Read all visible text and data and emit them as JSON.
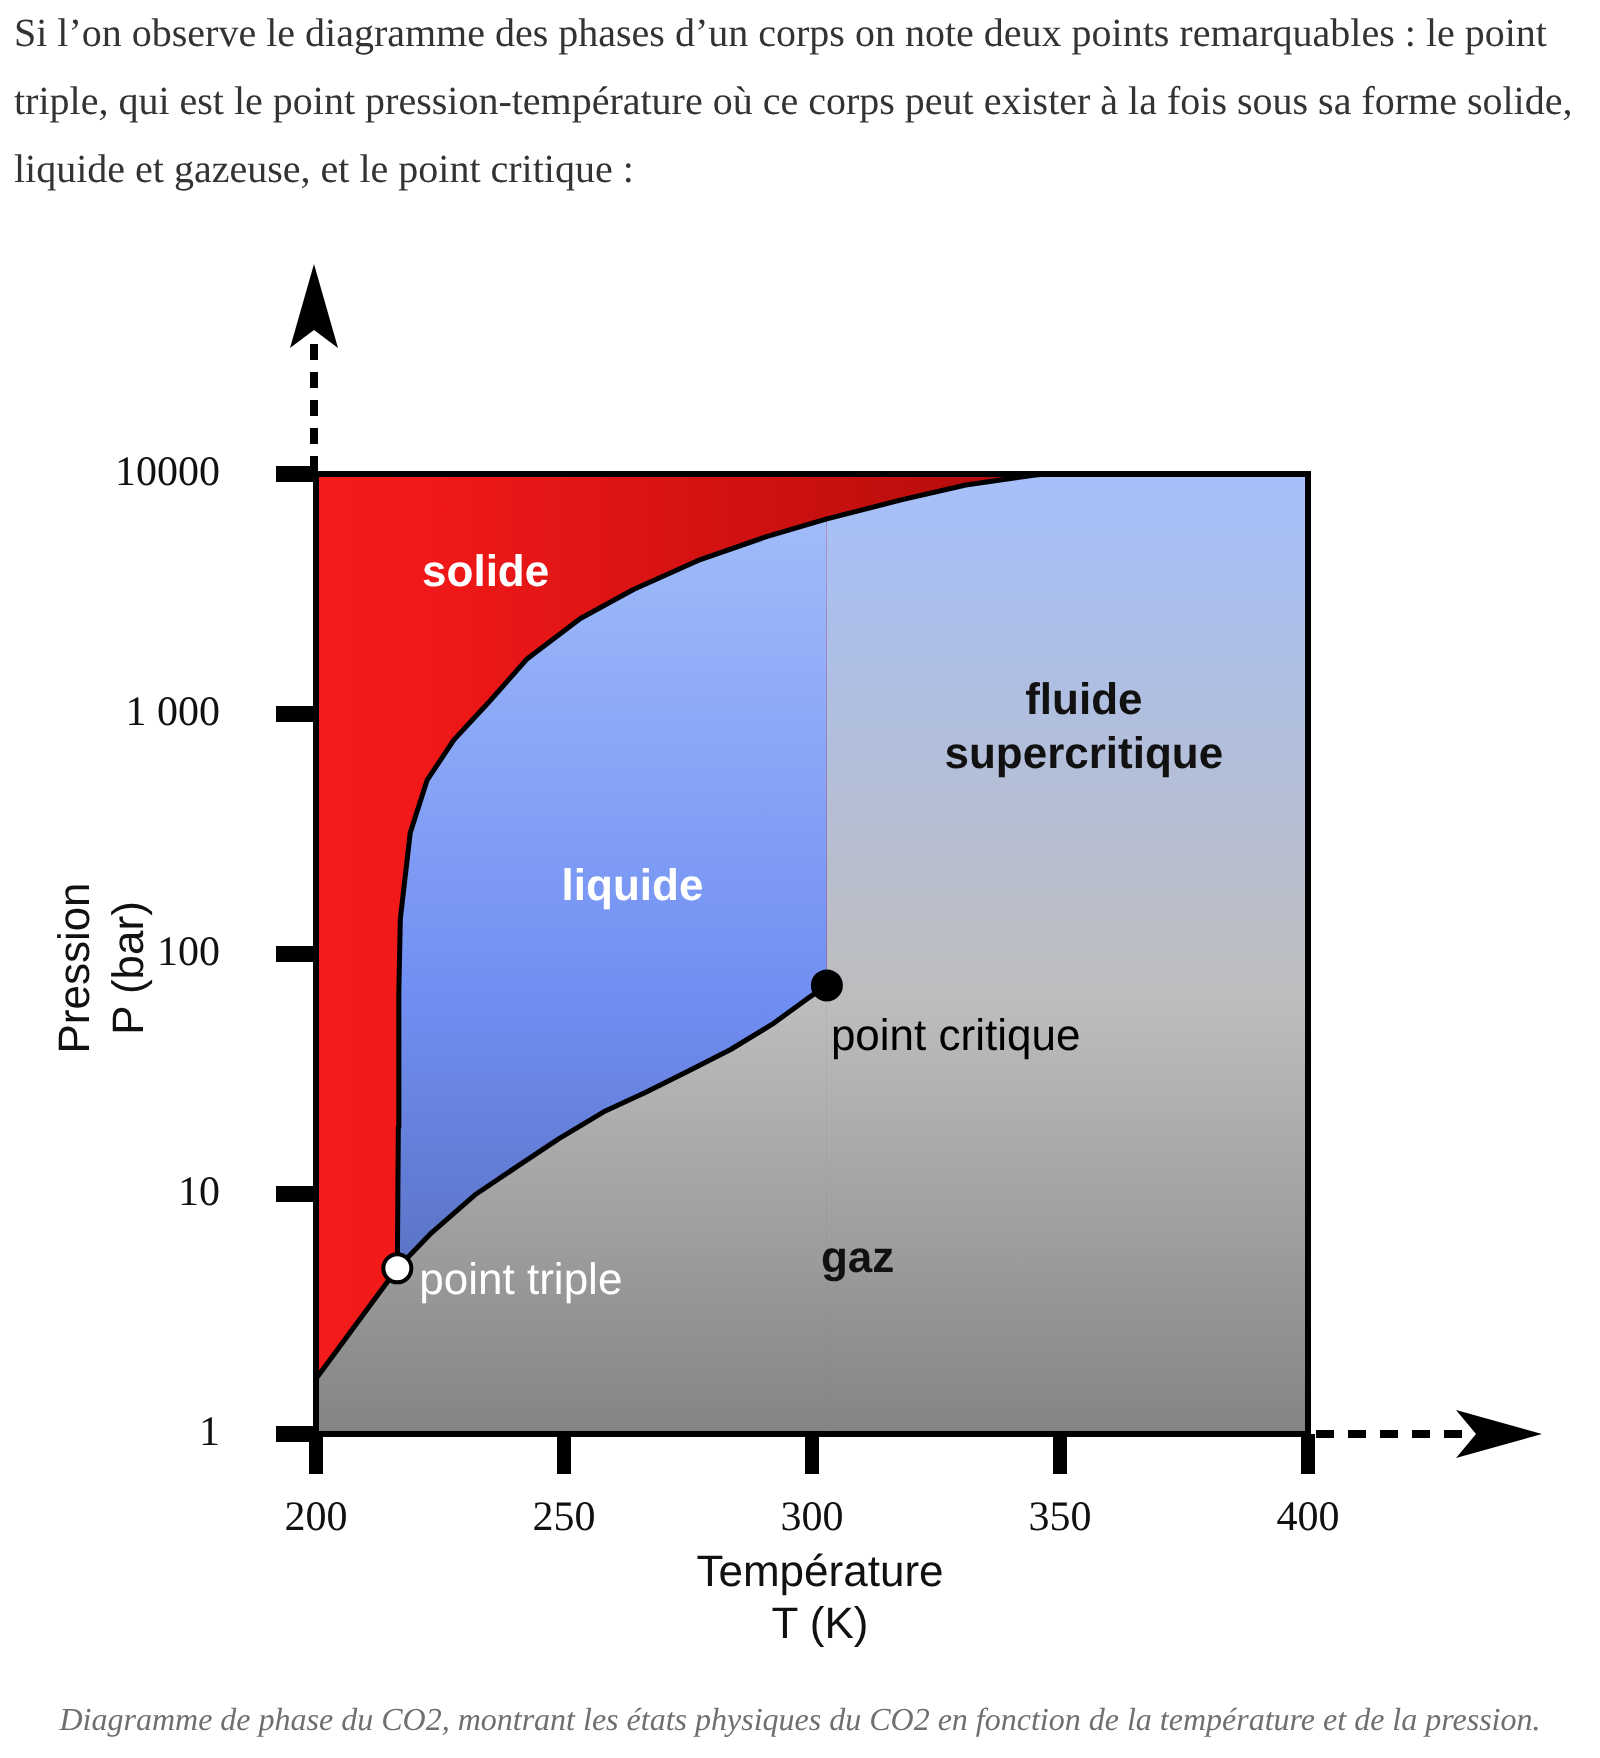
{
  "chart_data": {
    "type": "area",
    "title": "Si l’on observe le diagramme des phases d’un corps on note deux points remarquables : le point triple, qui est le point pression-température où ce corps peut exister à la fois sous sa forme solide, liquide et gazeuse, et le point critique :",
    "xlabel": "Température\nT (K)",
    "ylabel": "Pression\nP (bar)",
    "xlim": [
      200,
      400
    ],
    "xticks": [
      200,
      250,
      300,
      350,
      400
    ],
    "ylim": [
      1,
      10000
    ],
    "yticks": [
      1,
      10,
      100,
      {
        "value": 1000,
        "label": "1 000"
      },
      10000
    ],
    "log": "y",
    "series": [
      {
        "color": "#6f8ef2",
        "x": [
          216.4,
          216.6,
          216.7,
          217,
          219,
          222.4,
          227.8,
          234.5,
          242.6,
          253.3,
          264,
          277.5,
          291,
          303
        ],
        "values": [
          4.9,
          19,
          69,
          140,
          320,
          530,
          780,
          1100,
          1700,
          2500,
          3300,
          4400,
          5500,
          6500
        ]
      },
      {
        "color": "#bdbdbd",
        "x": [
          303,
          318,
          331,
          345,
          347.5,
          400
        ],
        "values": [
          6500,
          7800,
          9000,
          9900,
          10000,
          10000
        ]
      },
      {
        "color": "#bdbdbd",
        "x": [
          200,
          216.4,
          223,
          232,
          240.5,
          249,
          258,
          266.4,
          275,
          283.6,
          292,
          299,
          303
        ],
        "values": [
          1.7,
          4.9,
          6.8,
          9.9,
          13,
          17,
          22,
          26.5,
          32.5,
          40,
          51,
          65,
          74
        ]
      },
      {
        "type": "scatter",
        "name": "point triple",
        "color": "#ffffff",
        "x": [
          216.4
        ],
        "values": [
          4.9
        ]
      },
      {
        "type": "scatter",
        "name": "point critique",
        "color": "#000000",
        "x": [
          303
        ],
        "values": [
          74
        ]
      }
    ],
    "annotations": [
      "solide",
      "liquide",
      "fluide\nsupercritique",
      "gaz",
      "Diagramme de phase du CO2, montrant les états physiques du CO2 en fonction de la température et de la pression."
    ]
  }
}
